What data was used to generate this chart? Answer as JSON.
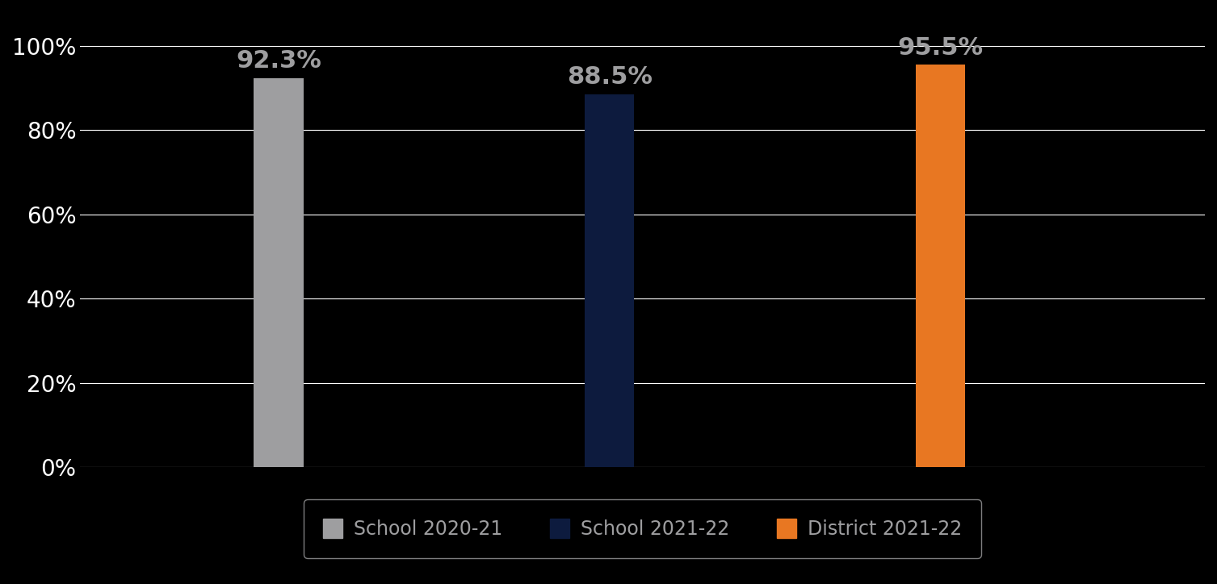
{
  "categories": [
    "School 2020-21",
    "School 2021-22",
    "District 2021-22"
  ],
  "values": [
    92.3,
    88.5,
    95.5
  ],
  "bar_colors": [
    "#9E9EA0",
    "#0D1B3E",
    "#E87722"
  ],
  "label_color": "#9E9EA0",
  "background_color": "#000000",
  "plot_bg_color": "#000000",
  "grid_color": "#FFFFFF",
  "tick_color": "#FFFFFF",
  "ylim": [
    0,
    100
  ],
  "yticks": [
    0,
    20,
    40,
    60,
    80,
    100
  ],
  "ytick_labels": [
    "0%",
    "20%",
    "40%",
    "60%",
    "80%",
    "100%"
  ],
  "bar_width": 0.15,
  "bar_positions": [
    1,
    2,
    3
  ],
  "xlim": [
    0.4,
    3.8
  ],
  "label_fontsize": 22,
  "tick_fontsize": 20,
  "legend_fontsize": 17,
  "value_labels": [
    "92.3%",
    "88.5%",
    "95.5%"
  ],
  "legend_entries": [
    "School 2020-21",
    "School 2021-22",
    "District 2021-22"
  ],
  "legend_colors": [
    "#9E9EA0",
    "#0D1B3E",
    "#E87722"
  ],
  "legend_edge_color": "#9E9EA0"
}
